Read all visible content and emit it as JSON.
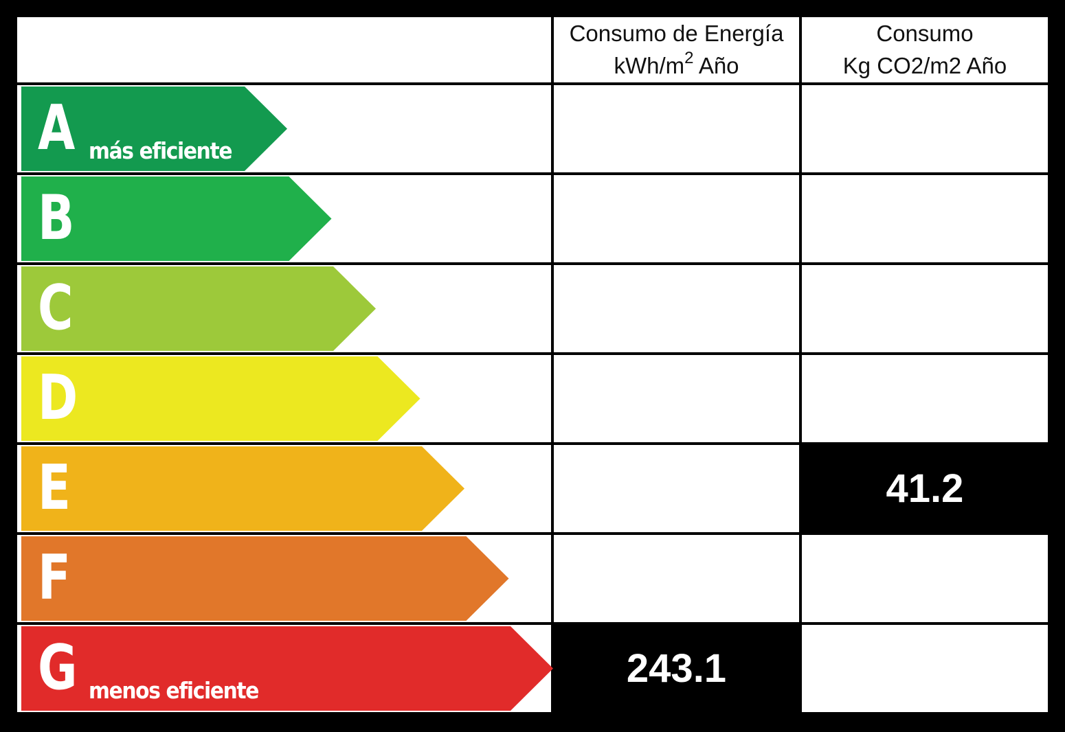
{
  "header": {
    "energy_line1": "Consumo de Energía",
    "energy_line2_pre": "kWh/m",
    "energy_line2_sup": "2",
    "energy_line2_post": " Año",
    "co2_line1": "Consumo",
    "co2_line2": "Kg CO2/m2 Año"
  },
  "rows": [
    {
      "letter": "A",
      "sublabel": "más eficiente",
      "color": "#139a4f",
      "energy": "",
      "co2": ""
    },
    {
      "letter": "B",
      "sublabel": "",
      "color": "#20b04b",
      "energy": "",
      "co2": ""
    },
    {
      "letter": "C",
      "sublabel": "",
      "color": "#9dc93a",
      "energy": "",
      "co2": ""
    },
    {
      "letter": "D",
      "sublabel": "",
      "color": "#ece820",
      "energy": "",
      "co2": ""
    },
    {
      "letter": "E",
      "sublabel": "",
      "color": "#f0b31a",
      "energy": "",
      "co2": "41.2"
    },
    {
      "letter": "F",
      "sublabel": "",
      "color": "#e1772a",
      "energy": "",
      "co2": ""
    },
    {
      "letter": "G",
      "sublabel": "menos eficiente",
      "color": "#e12b2a",
      "energy": "243.1",
      "co2": ""
    }
  ]
}
